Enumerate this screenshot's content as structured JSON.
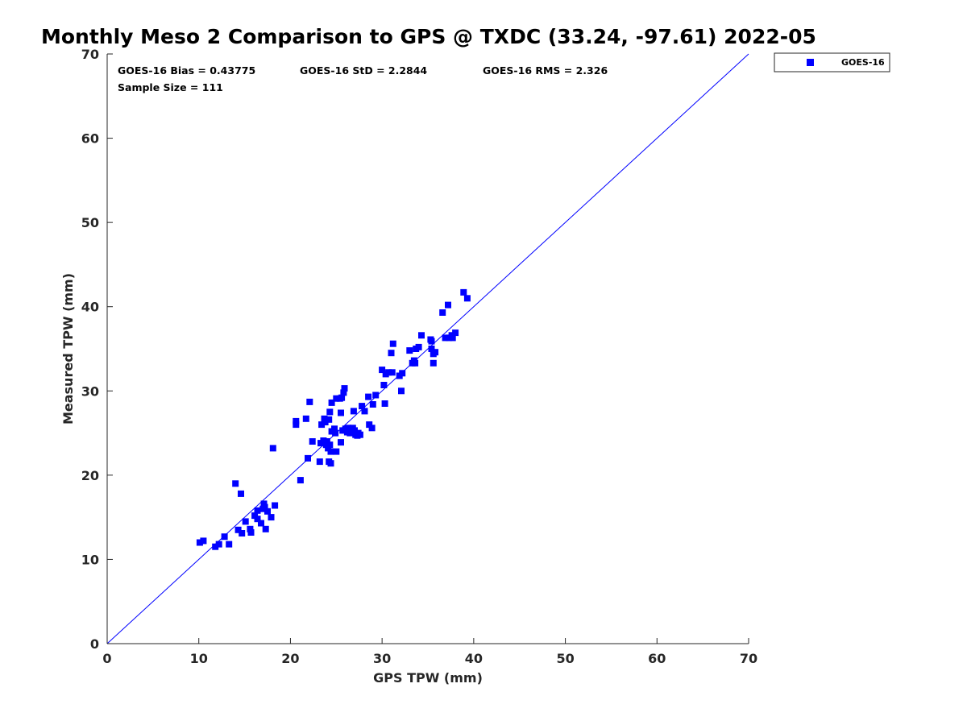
{
  "chart_data": {
    "type": "scatter",
    "title": "Monthly Meso 2 Comparison to GPS @ TXDC (33.24, -97.61) 2022-05",
    "xlabel": "GPS TPW (mm)",
    "ylabel": "Measured TPW (mm)",
    "xlim": [
      0,
      70
    ],
    "ylim": [
      0,
      70
    ],
    "xticks": [
      "0",
      "10",
      "20",
      "30",
      "40",
      "50",
      "60",
      "70"
    ],
    "yticks": [
      "0",
      "10",
      "20",
      "30",
      "40",
      "50",
      "60",
      "70"
    ],
    "grid": false,
    "legend_position": "outside-top-right",
    "stats": {
      "bias": "GOES-16 Bias = 0.43775",
      "std": "GOES-16 StD = 2.2844",
      "rms": "GOES-16 RMS = 2.326",
      "sample_size": "Sample Size = 111"
    },
    "reference_line": {
      "x": [
        0,
        70
      ],
      "y": [
        0,
        70
      ],
      "color": "#0000ff"
    },
    "series": [
      {
        "name": "GOES-16",
        "color": "#0000ff",
        "marker": "square",
        "points": [
          [
            10.1,
            12.0
          ],
          [
            10.5,
            12.2
          ],
          [
            11.8,
            11.5
          ],
          [
            12.2,
            11.8
          ],
          [
            12.8,
            12.7
          ],
          [
            13.3,
            11.8
          ],
          [
            14.0,
            19.0
          ],
          [
            14.3,
            13.5
          ],
          [
            14.6,
            17.8
          ],
          [
            14.7,
            13.1
          ],
          [
            15.1,
            14.5
          ],
          [
            15.6,
            13.6
          ],
          [
            15.7,
            13.2
          ],
          [
            16.1,
            15.2
          ],
          [
            16.4,
            15.8
          ],
          [
            16.4,
            14.8
          ],
          [
            16.8,
            14.3
          ],
          [
            17.0,
            16.0
          ],
          [
            17.1,
            16.6
          ],
          [
            17.2,
            16.2
          ],
          [
            17.3,
            13.6
          ],
          [
            17.5,
            15.7
          ],
          [
            17.9,
            15.0
          ],
          [
            18.1,
            23.2
          ],
          [
            18.3,
            16.4
          ],
          [
            20.6,
            26.0
          ],
          [
            20.6,
            26.4
          ],
          [
            21.1,
            19.4
          ],
          [
            21.7,
            26.7
          ],
          [
            21.9,
            22.0
          ],
          [
            22.1,
            28.7
          ],
          [
            22.4,
            24.0
          ],
          [
            23.2,
            21.6
          ],
          [
            23.3,
            23.8
          ],
          [
            23.4,
            26.0
          ],
          [
            23.6,
            24.1
          ],
          [
            23.7,
            26.7
          ],
          [
            23.8,
            26.3
          ],
          [
            23.9,
            23.6
          ],
          [
            24.0,
            24.0
          ],
          [
            24.1,
            23.2
          ],
          [
            24.2,
            26.6
          ],
          [
            24.2,
            21.6
          ],
          [
            24.3,
            23.6
          ],
          [
            24.3,
            27.5
          ],
          [
            24.4,
            22.8
          ],
          [
            24.4,
            21.4
          ],
          [
            24.5,
            25.2
          ],
          [
            24.5,
            28.6
          ],
          [
            24.8,
            25.5
          ],
          [
            24.9,
            25.0
          ],
          [
            25.0,
            29.1
          ],
          [
            25.0,
            22.8
          ],
          [
            25.4,
            29.1
          ],
          [
            25.5,
            23.9
          ],
          [
            25.5,
            27.4
          ],
          [
            25.6,
            29.2
          ],
          [
            25.7,
            25.3
          ],
          [
            25.8,
            29.8
          ],
          [
            25.9,
            30.3
          ],
          [
            26.0,
            25.5
          ],
          [
            26.3,
            25.6
          ],
          [
            26.5,
            25.0
          ],
          [
            26.8,
            25.6
          ],
          [
            26.9,
            27.6
          ],
          [
            27.0,
            25.3
          ],
          [
            27.1,
            24.8
          ],
          [
            27.4,
            25.0
          ],
          [
            27.6,
            24.8
          ],
          [
            27.8,
            28.2
          ],
          [
            28.1,
            27.6
          ],
          [
            28.5,
            29.3
          ],
          [
            28.6,
            26.0
          ],
          [
            28.9,
            25.6
          ],
          [
            29.3,
            29.5
          ],
          [
            30.0,
            32.5
          ],
          [
            30.2,
            30.7
          ],
          [
            30.3,
            28.5
          ],
          [
            30.4,
            32.0
          ],
          [
            30.7,
            32.2
          ],
          [
            31.0,
            34.5
          ],
          [
            31.1,
            32.2
          ],
          [
            31.2,
            35.6
          ],
          [
            31.9,
            31.8
          ],
          [
            32.1,
            30.0
          ],
          [
            32.2,
            32.1
          ],
          [
            33.0,
            34.8
          ],
          [
            33.3,
            33.3
          ],
          [
            33.5,
            33.6
          ],
          [
            33.6,
            33.3
          ],
          [
            33.7,
            35.0
          ],
          [
            34.3,
            36.6
          ],
          [
            35.3,
            36.1
          ],
          [
            35.4,
            35.0
          ],
          [
            35.6,
            33.3
          ],
          [
            35.6,
            34.4
          ],
          [
            35.8,
            34.6
          ],
          [
            36.6,
            39.3
          ],
          [
            36.9,
            36.3
          ],
          [
            37.2,
            40.2
          ],
          [
            37.3,
            36.3
          ],
          [
            37.6,
            36.6
          ],
          [
            37.7,
            36.3
          ],
          [
            38.0,
            36.9
          ],
          [
            38.9,
            41.7
          ],
          [
            39.3,
            41.0
          ],
          [
            35.4,
            35.9
          ],
          [
            34.0,
            35.2
          ],
          [
            29.0,
            28.4
          ],
          [
            26.2,
            25.1
          ],
          [
            27.3,
            24.7
          ]
        ]
      }
    ]
  }
}
